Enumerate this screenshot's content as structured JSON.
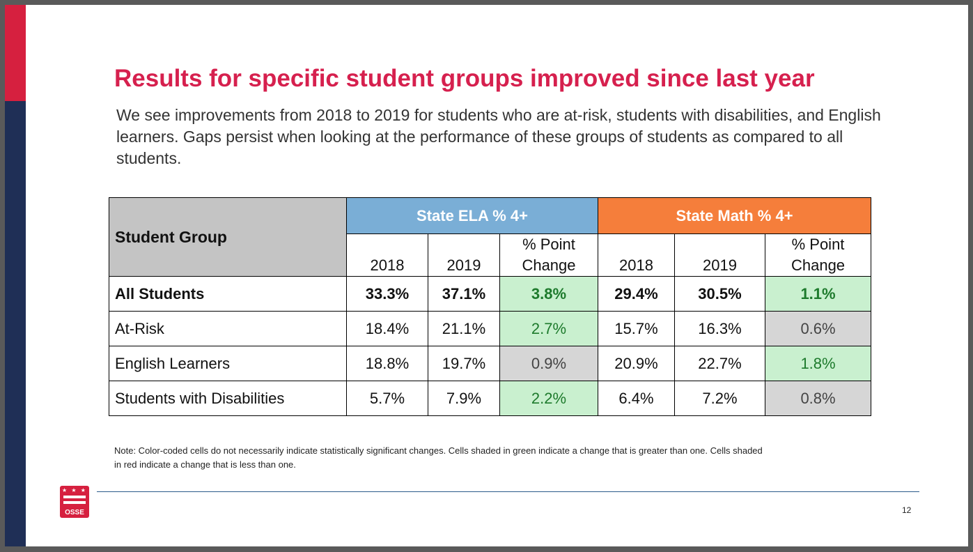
{
  "title": "Results for specific student groups improved since last year",
  "intro": "We see improvements from 2018 to 2019 for students who are at-risk, students with disabilities, and English learners. Gaps persist when looking at the performance of these groups of students as compared to all students.",
  "table": {
    "group_header": "Student Group",
    "ela_header": "State ELA % 4+",
    "math_header": "State Math % 4+",
    "sub_headers": [
      "2018",
      "2019",
      "% Point Change",
      "2018",
      "2019",
      "% Point Change"
    ],
    "rows": [
      {
        "label": "All Students",
        "ela_2018": "33.3%",
        "ela_2019": "37.1%",
        "ela_change": "3.8%",
        "math_2018": "29.4%",
        "math_2019": "30.5%",
        "math_change": "1.1%"
      },
      {
        "label": "At-Risk",
        "ela_2018": "18.4%",
        "ela_2019": "21.1%",
        "ela_change": "2.7%",
        "math_2018": "15.7%",
        "math_2019": "16.3%",
        "math_change": "0.6%"
      },
      {
        "label": "English Learners",
        "ela_2018": "18.8%",
        "ela_2019": "19.7%",
        "ela_change": "0.9%",
        "math_2018": "20.9%",
        "math_2019": "22.7%",
        "math_change": "1.8%"
      },
      {
        "label": "Students with Disabilities",
        "ela_2018": "5.7%",
        "ela_2019": "7.9%",
        "ela_change": "2.2%",
        "math_2018": "6.4%",
        "math_2019": "7.2%",
        "math_change": "0.8%"
      }
    ]
  },
  "note": "Note: Color-coded cells do not necessarily indicate statistically significant changes. Cells shaded in green indicate a change that is greater than one. Cells shaded in red indicate a change that is less than one.",
  "footer": {
    "logo_text": "OSSE",
    "logo_stars": "★ ★ ★",
    "page_number": "12"
  },
  "colors": {
    "title": "#d6204e",
    "ela_header": "#7aaed6",
    "math_header": "#f57e3b",
    "improved": "#c9f0cf",
    "small_change": "#d6d6d6",
    "brand_red": "#d6203f",
    "brand_navy": "#1f2f56"
  }
}
